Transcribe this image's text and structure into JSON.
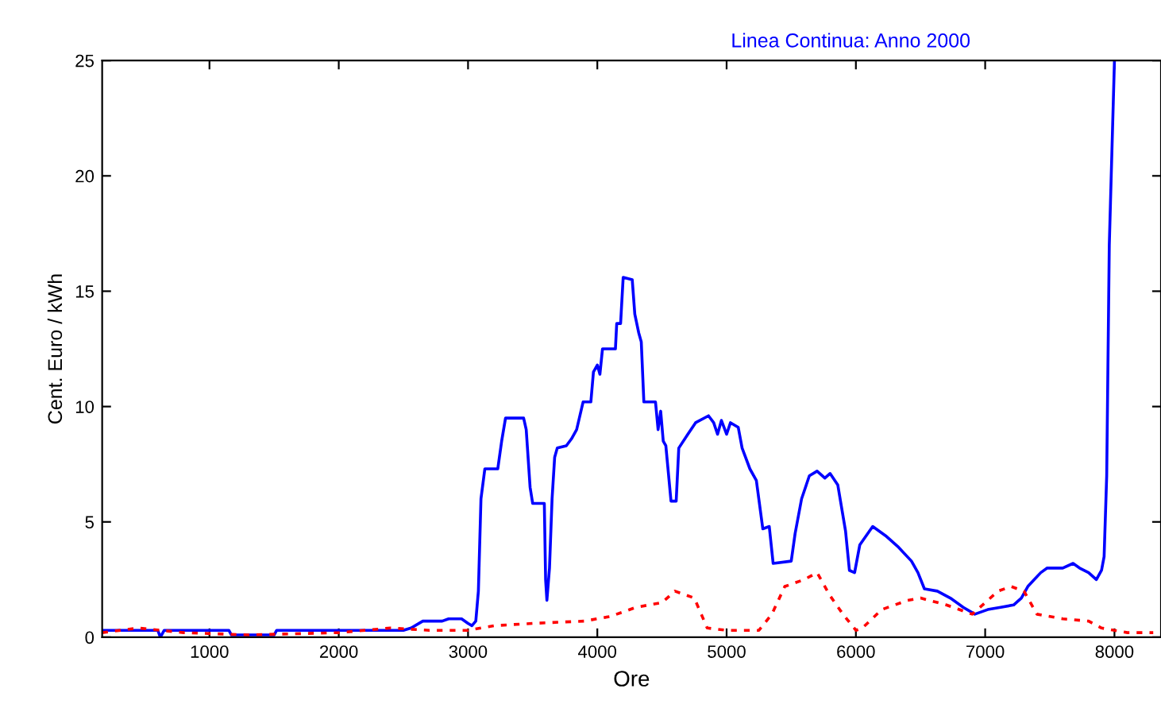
{
  "chart_data": {
    "type": "line",
    "title": "Linea Continua: Anno 2000",
    "xlabel": "Ore",
    "ylabel": "Cent. Euro / kWh",
    "xlim": [
      170,
      8360
    ],
    "ylim": [
      0,
      25
    ],
    "xticks": [
      1000,
      2000,
      3000,
      4000,
      5000,
      6000,
      7000,
      8000
    ],
    "yticks": [
      0,
      5,
      10,
      15,
      20,
      25
    ],
    "grid": false,
    "legend": false,
    "series": [
      {
        "color": "#0000ff",
        "line_style": "solid",
        "x": [
          170,
          600,
          620,
          650,
          1150,
          1170,
          1500,
          1520,
          2500,
          2560,
          2650,
          2800,
          2850,
          2950,
          3000,
          3030,
          3060,
          3080,
          3100,
          3130,
          3230,
          3260,
          3290,
          3430,
          3450,
          3480,
          3500,
          3590,
          3600,
          3610,
          3630,
          3650,
          3670,
          3690,
          3760,
          3800,
          3840,
          3890,
          3950,
          3970,
          4000,
          4020,
          4040,
          4140,
          4150,
          4180,
          4200,
          4270,
          4290,
          4320,
          4340,
          4360,
          4450,
          4470,
          4490,
          4510,
          4530,
          4570,
          4610,
          4630,
          4700,
          4760,
          4860,
          4900,
          4930,
          4960,
          5000,
          5030,
          5090,
          5120,
          5180,
          5230,
          5280,
          5330,
          5360,
          5500,
          5530,
          5580,
          5640,
          5700,
          5760,
          5800,
          5860,
          5920,
          5950,
          5990,
          6030,
          6130,
          6230,
          6330,
          6430,
          6480,
          6530,
          6630,
          6730,
          6830,
          6920,
          7020,
          7120,
          7220,
          7280,
          7330,
          7380,
          7430,
          7480,
          7600,
          7680,
          7730,
          7800,
          7860,
          7900,
          7920,
          7940,
          7960,
          7980,
          8000
        ],
        "values": [
          0.3,
          0.3,
          0.0,
          0.3,
          0.3,
          0.1,
          0.1,
          0.3,
          0.3,
          0.4,
          0.7,
          0.7,
          0.8,
          0.8,
          0.6,
          0.5,
          0.7,
          2.0,
          6.0,
          7.3,
          7.3,
          8.5,
          9.5,
          9.5,
          9.0,
          6.5,
          5.8,
          5.8,
          2.5,
          1.6,
          3.0,
          6.0,
          7.8,
          8.2,
          8.3,
          8.6,
          9.0,
          10.2,
          10.2,
          11.5,
          11.8,
          11.4,
          12.5,
          12.5,
          13.6,
          13.6,
          15.6,
          15.5,
          14.0,
          13.2,
          12.8,
          10.2,
          10.2,
          9.0,
          9.8,
          8.5,
          8.3,
          5.9,
          5.9,
          8.2,
          8.8,
          9.3,
          9.6,
          9.3,
          8.8,
          9.4,
          8.8,
          9.3,
          9.1,
          8.2,
          7.3,
          6.8,
          4.7,
          4.8,
          3.2,
          3.3,
          4.5,
          6.0,
          7.0,
          7.2,
          6.9,
          7.1,
          6.6,
          4.6,
          2.9,
          2.8,
          4.0,
          4.8,
          4.4,
          3.9,
          3.3,
          2.8,
          2.1,
          2.0,
          1.7,
          1.3,
          1.0,
          1.2,
          1.3,
          1.4,
          1.7,
          2.2,
          2.5,
          2.8,
          3.0,
          3.0,
          3.2,
          3.0,
          2.8,
          2.5,
          2.9,
          3.5,
          7.0,
          17.0,
          21.0,
          25.0
        ]
      },
      {
        "color": "#ff0000",
        "line_style": "dashed",
        "x": [
          170,
          450,
          800,
          1300,
          2000,
          2400,
          2700,
          3000,
          3200,
          3500,
          3900,
          4100,
          4300,
          4500,
          4600,
          4750,
          4850,
          5000,
          5250,
          5350,
          5450,
          5600,
          5700,
          5800,
          5900,
          6000,
          6050,
          6200,
          6400,
          6500,
          6700,
          6900,
          7000,
          7100,
          7200,
          7300,
          7400,
          7600,
          7800,
          7900,
          8100,
          8300
        ],
        "values": [
          0.2,
          0.4,
          0.2,
          0.1,
          0.2,
          0.4,
          0.3,
          0.3,
          0.5,
          0.6,
          0.7,
          0.9,
          1.3,
          1.5,
          2.0,
          1.7,
          0.4,
          0.3,
          0.3,
          1.0,
          2.2,
          2.5,
          2.8,
          1.8,
          1.0,
          0.3,
          0.4,
          1.2,
          1.6,
          1.7,
          1.4,
          1.0,
          1.5,
          2.0,
          2.2,
          2.0,
          1.0,
          0.8,
          0.7,
          0.4,
          0.2,
          0.2
        ]
      }
    ]
  }
}
